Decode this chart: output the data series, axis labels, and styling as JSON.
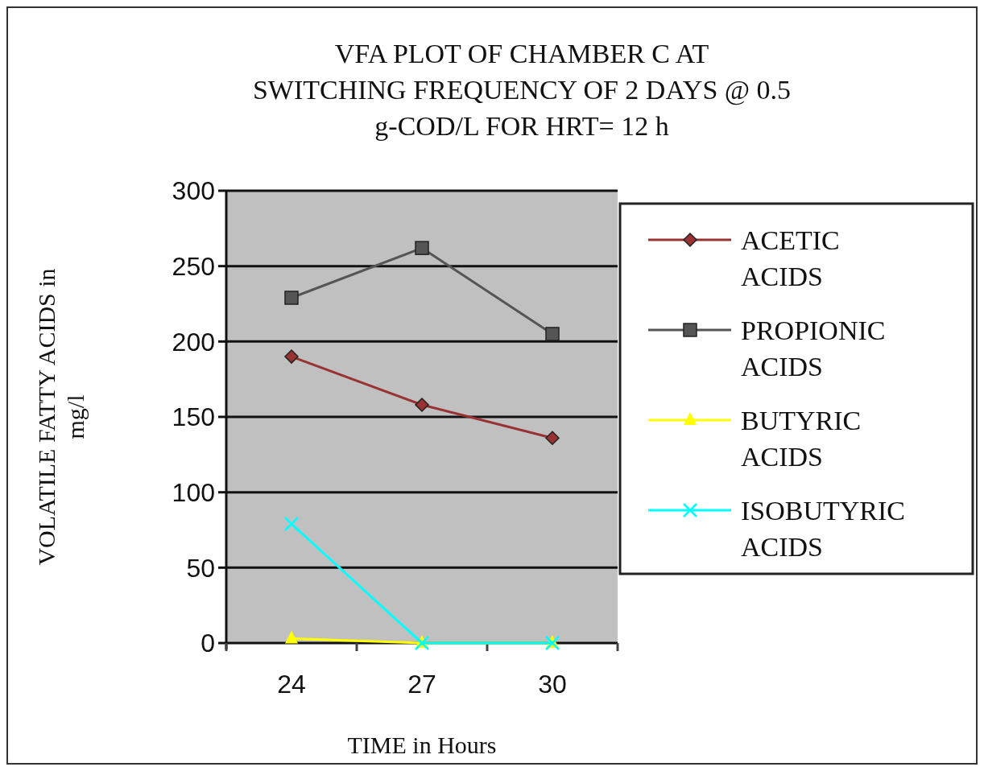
{
  "chart_data": {
    "type": "line",
    "title": "VFA PLOT OF CHAMBER C AT\nSWITCHING FREQUENCY OF 2 DAYS @ 0.5\ng-COD/L FOR HRT= 12 h",
    "xlabel": "TIME in Hours",
    "ylabel": "VOLATILE FATTY ACIDS in\nmg/l",
    "categories": [
      "24",
      "27",
      "30"
    ],
    "ylim": [
      0,
      300
    ],
    "yticks": [
      0,
      50,
      100,
      150,
      200,
      250,
      300
    ],
    "grid": "y",
    "legend": "right",
    "series": [
      {
        "name": "ACETIC ACIDS",
        "color": "#993333",
        "marker": "diamond",
        "values": [
          190,
          158,
          136
        ]
      },
      {
        "name": "PROPIONIC ACIDS",
        "color": "#555555",
        "marker": "square",
        "values": [
          229,
          262,
          205
        ]
      },
      {
        "name": "BUTYRIC ACIDS",
        "color": "#ffff00",
        "marker": "triangle",
        "values": [
          3,
          0,
          0
        ]
      },
      {
        "name": "ISOBUTYRIC ACIDS",
        "color": "#00ffff",
        "marker": "cross",
        "values": [
          79,
          0,
          0
        ]
      }
    ]
  }
}
